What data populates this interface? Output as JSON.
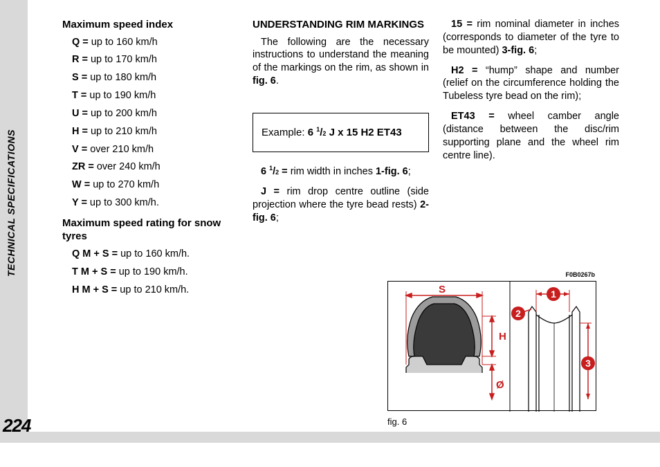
{
  "sidebar": {
    "label": "TECHNICAL SPECIFICATIONS",
    "page_number": "224"
  },
  "col1": {
    "heading_speed_index": "Maximum speed index",
    "speed_index": [
      {
        "k": "Q =",
        "v": " up to 160 km/h"
      },
      {
        "k": "R =",
        "v": " up to 170 km/h"
      },
      {
        "k": "S =",
        "v": " up to 180 km/h"
      },
      {
        "k": "T =",
        "v": " up to 190 km/h"
      },
      {
        "k": "U =",
        "v": " up to 200 km/h"
      },
      {
        "k": "H =",
        "v": " up to 210 km/h"
      },
      {
        "k": "V =",
        "v": " over 210 km/h"
      },
      {
        "k": "ZR =",
        "v": " over 240 km/h"
      },
      {
        "k": "W =",
        "v": " up to 270 km/h"
      },
      {
        "k": "Y =",
        "v": " up to 300 km/h."
      }
    ],
    "heading_snow": "Maximum speed rating for snow tyres",
    "snow": [
      {
        "k": "Q M + S =",
        "v": " up to 160 km/h."
      },
      {
        "k": "T M + S =",
        "v": " up to 190 km/h."
      },
      {
        "k": "H M + S =",
        "v": " up to 210 km/h."
      }
    ]
  },
  "col2": {
    "heading": "UNDERSTANDING RIM MARKINGS",
    "intro_1": "The following are the necessary instructions to understand the meaning of the markings on the rim, as shown in ",
    "intro_bold": "fig. 6",
    "intro_2": ".",
    "example_prefix": "Example: ",
    "example_bold_a": "6 ",
    "example_frac_n": "1",
    "example_frac_d": "2",
    "example_bold_b": " J x 15 H2 ET43",
    "p1_key": "6 ",
    "p1_frac_n": "1",
    "p1_frac_d": "2",
    "p1_eq": " = ",
    "p1_rest": "rim width in inches ",
    "p1_ref": "1-fig. 6",
    "p1_end": ";",
    "p2_key": "J = ",
    "p2_rest": "rim drop centre outline (side projection where the tyre bead rests) ",
    "p2_ref": "2-fig. 6",
    "p2_end": ";"
  },
  "col3": {
    "p3_key": "15 = ",
    "p3_rest": "rim nominal diameter in inches (corresponds to diameter of the tyre to be mounted) ",
    "p3_ref": "3-fig. 6",
    "p3_end": ";",
    "p4_key": "H2 = ",
    "p4_rest": "“hump” shape and number (relief on the circumference holding the Tubeless tyre bead on the rim);",
    "p5_key": "ET43 = ",
    "p5_rest": "wheel camber angle (distance between the disc/rim supporting plane and the wheel rim centre line)."
  },
  "figure": {
    "code": "F0B0267b",
    "caption": "fig. 6",
    "labels": {
      "s": "S",
      "h": "H",
      "o": "Ø",
      "c1": "1",
      "c2": "2",
      "c3": "3"
    },
    "colors": {
      "red": "#c81e1e",
      "rim_medgray": "#9b9b9b",
      "rim_lightgray": "#cfcfcf",
      "stroke": "#000000"
    }
  }
}
